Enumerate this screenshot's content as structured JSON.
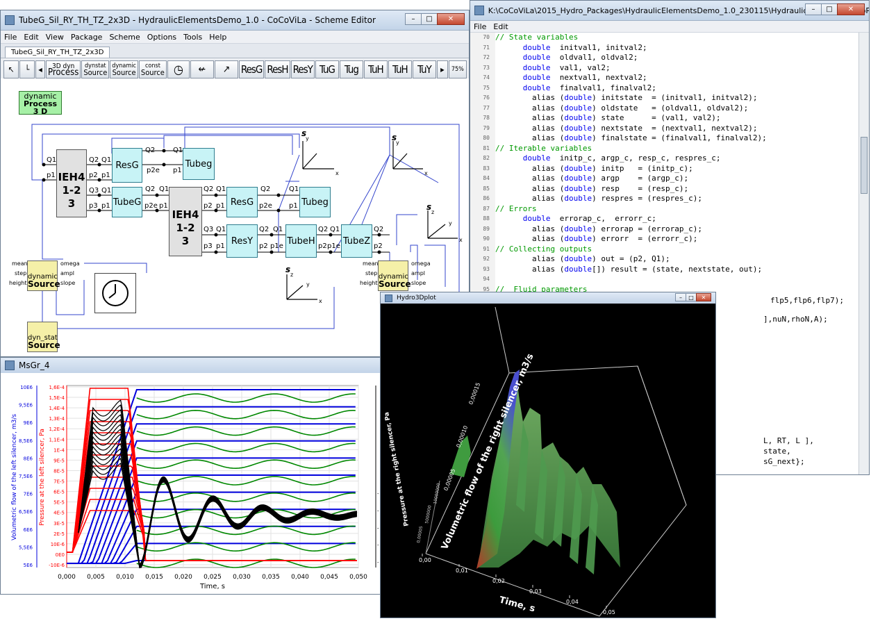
{
  "scheme_window": {
    "title": "TubeG_Sil_RY_TH_TZ_2x3D - HydraulicElementsDemo_1.0 - CoCoViLa - Scheme Editor",
    "menu": [
      "File",
      "Edit",
      "View",
      "Package",
      "Scheme",
      "Options",
      "Tools",
      "Help"
    ],
    "tab": "TubeG_Sil_RY_TH_TZ_2x3D",
    "toolbar_blocks": [
      {
        "top": "3D dyn",
        "bottom": "Process"
      },
      {
        "top": "dynstat",
        "bottom": "Source"
      },
      {
        "top": "dynamic",
        "bottom": "Source"
      },
      {
        "top": "const",
        "bottom": "Source"
      }
    ],
    "toolbar_labels": [
      "ResG",
      "ResH",
      "ResY",
      "TuG",
      "Tug",
      "TuH",
      "TuH",
      "TuY"
    ],
    "zoom": "75%",
    "process_label": {
      "line1": "dynamic",
      "line2": "Process",
      "line3": "3 D"
    },
    "ieh_label": {
      "line1": "IEH4",
      "line2": "1-2",
      "line3": "3"
    },
    "blocks": {
      "resg": "ResG",
      "tubeg": "Tubeg",
      "tubeG": "TubeG",
      "resy": "ResY",
      "tubeh": "TubeH",
      "tubez": "TubeZ"
    },
    "ports": {
      "q1": "Q1",
      "q2": "Q2",
      "q3": "Q3",
      "p1": "p1",
      "p2": "p2",
      "p3": "p3",
      "p2e": "p2e",
      "p1e": "p1e"
    },
    "source_label": {
      "line1": "dynamic",
      "line2": "Source"
    },
    "source_ports": {
      "mean": "mean",
      "step": "step",
      "height": "height",
      "omega": "omega",
      "ampl": "ampl",
      "slope": "slope"
    },
    "dynstat_label": {
      "line1": "dyn_stat",
      "line2": "Source"
    },
    "axes": {
      "s": "s",
      "x": "x",
      "y": "y",
      "z": "z"
    }
  },
  "code_window": {
    "title": "K:\\CoCoViLa\\2015_Hydro_Packages\\HydraulicElementsDemo_1.0_230115\\HydraulicElementsDemoP...",
    "menu": [
      "File",
      "Edit"
    ],
    "lines": [
      {
        "n": "70",
        "parts": [
          [
            "cm",
            "// State variables"
          ]
        ]
      },
      {
        "n": "71",
        "parts": [
          [
            "",
            "      "
          ],
          [
            "kw",
            "double"
          ],
          [
            "",
            "  initval1, initval2;"
          ]
        ]
      },
      {
        "n": "72",
        "parts": [
          [
            "",
            "      "
          ],
          [
            "kw",
            "double"
          ],
          [
            "",
            "  oldval1, oldval2;"
          ]
        ]
      },
      {
        "n": "73",
        "parts": [
          [
            "",
            "      "
          ],
          [
            "kw",
            "double"
          ],
          [
            "",
            "  val1, val2;"
          ]
        ]
      },
      {
        "n": "74",
        "parts": [
          [
            "",
            "      "
          ],
          [
            "kw",
            "double"
          ],
          [
            "",
            "  nextval1, nextval2;"
          ]
        ]
      },
      {
        "n": "75",
        "parts": [
          [
            "",
            "      "
          ],
          [
            "kw",
            "double"
          ],
          [
            "",
            "  finalval1, finalval2;"
          ]
        ]
      },
      {
        "n": "76",
        "parts": [
          [
            "",
            "        alias ("
          ],
          [
            "kw",
            "double"
          ],
          [
            "",
            ") initstate  = (initval1, initval2);"
          ]
        ]
      },
      {
        "n": "77",
        "parts": [
          [
            "",
            "        alias ("
          ],
          [
            "kw",
            "double"
          ],
          [
            "",
            ") oldstate   = (oldval1, oldval2);"
          ]
        ]
      },
      {
        "n": "78",
        "parts": [
          [
            "",
            "        alias ("
          ],
          [
            "kw",
            "double"
          ],
          [
            "",
            ") state      = (val1, val2);"
          ]
        ]
      },
      {
        "n": "79",
        "parts": [
          [
            "",
            "        alias ("
          ],
          [
            "kw",
            "double"
          ],
          [
            "",
            ") nextstate  = (nextval1, nextval2);"
          ]
        ]
      },
      {
        "n": "80",
        "parts": [
          [
            "",
            "        alias ("
          ],
          [
            "kw",
            "double"
          ],
          [
            "",
            ") finalstate = (finalval1, finalval2);"
          ]
        ]
      },
      {
        "n": "81",
        "parts": [
          [
            "cm",
            "// Iterable variables"
          ]
        ]
      },
      {
        "n": "82",
        "parts": [
          [
            "",
            "      "
          ],
          [
            "kw",
            "double"
          ],
          [
            "",
            "  initp_c, argp_c, resp_c, respres_c;"
          ]
        ]
      },
      {
        "n": "83",
        "parts": [
          [
            "",
            "        alias ("
          ],
          [
            "kw",
            "double"
          ],
          [
            "",
            ") initp   = (initp_c);"
          ]
        ]
      },
      {
        "n": "84",
        "parts": [
          [
            "",
            "        alias ("
          ],
          [
            "kw",
            "double"
          ],
          [
            "",
            ") argp    = (argp_c);"
          ]
        ]
      },
      {
        "n": "85",
        "parts": [
          [
            "",
            "        alias ("
          ],
          [
            "kw",
            "double"
          ],
          [
            "",
            ") resp    = (resp_c);"
          ]
        ]
      },
      {
        "n": "86",
        "parts": [
          [
            "",
            "        alias ("
          ],
          [
            "kw",
            "double"
          ],
          [
            "",
            ") respres = (respres_c);"
          ]
        ]
      },
      {
        "n": "87",
        "parts": [
          [
            "cm",
            "// Errors"
          ]
        ]
      },
      {
        "n": "88",
        "parts": [
          [
            "",
            "      "
          ],
          [
            "kw",
            "double"
          ],
          [
            "",
            "  errorap_c,  errorr_c;"
          ]
        ]
      },
      {
        "n": "89",
        "parts": [
          [
            "",
            "        alias ("
          ],
          [
            "kw",
            "double"
          ],
          [
            "",
            ") errorap = (errorap_c);"
          ]
        ]
      },
      {
        "n": "90",
        "parts": [
          [
            "",
            "        alias ("
          ],
          [
            "kw",
            "double"
          ],
          [
            "",
            ") errorr  = (errorr_c);"
          ]
        ]
      },
      {
        "n": "91",
        "parts": [
          [
            "cm",
            "// Collecting outputs"
          ]
        ]
      },
      {
        "n": "92",
        "parts": [
          [
            "",
            "        alias ("
          ],
          [
            "kw",
            "double"
          ],
          [
            "",
            ") out = (p2, Q1);"
          ]
        ]
      },
      {
        "n": "93",
        "parts": [
          [
            "",
            "        alias ("
          ],
          [
            "kw",
            "double"
          ],
          [
            "",
            "[]) result = (state, nextstate, out);"
          ]
        ]
      },
      {
        "n": "94",
        "parts": [
          [
            "",
            ""
          ]
        ]
      },
      {
        "n": "95",
        "parts": [
          [
            "cm",
            "//  Fluid parameters"
          ]
        ]
      }
    ],
    "fragments": [
      "flp5,flp6,flp7);",
      "],nuN,rhoN,A);",
      "L, RT, L ],",
      "state,",
      "sG_next};"
    ]
  },
  "graph_window": {
    "title": "MsGr_4",
    "xlabel": "Time, s",
    "ylabel_flow": "Volumetric flow of the left silencer, m3/s",
    "ylabel_pressure": "Pressure at the left silencer, Pa",
    "x_ticks": [
      "0,000",
      "0,005",
      "0,010",
      "0,015",
      "0,020",
      "0,025",
      "0,030",
      "0,035",
      "0,040",
      "0,045",
      "0,050"
    ],
    "y_ticks_left": [
      "10E6",
      "9,5E6",
      "9E6",
      "8,5E6",
      "8E6",
      "7,5E6",
      "7E6",
      "6,5E6",
      "6E6",
      "5,5E6",
      "5E6"
    ],
    "y_ticks_red": [
      "1,6E-4",
      "1,5E-4",
      "1,4E-4",
      "1,3E-4",
      "1,2E-4",
      "1,1E-4",
      "1E-4",
      "9E-5",
      "8E-5",
      "7E-5",
      "6E-5",
      "5E-5",
      "4E-5",
      "3E-5",
      "2E-5",
      "10E-6",
      "0E0",
      "-10E-6"
    ],
    "colors": {
      "blue": "#0000dd",
      "red": "#ff0000",
      "black": "#000000",
      "green": "#008800"
    }
  },
  "plot3d_window": {
    "title": "Hydro3Dplot",
    "xlabel": "Time, s",
    "zlabel": "Volumetric flow of the right silencer, m3/s",
    "ylabel": "Pressure at the right silencer, Pa",
    "t_ticks": [
      "0,00",
      "0,01",
      "0,02",
      "0,03",
      "0,04",
      "0,05"
    ],
    "z_ticks": [
      "0,00005",
      "0,00010",
      "0,00015"
    ],
    "y_ticks": [
      "0,00005",
      "5000000",
      "10000000"
    ]
  }
}
